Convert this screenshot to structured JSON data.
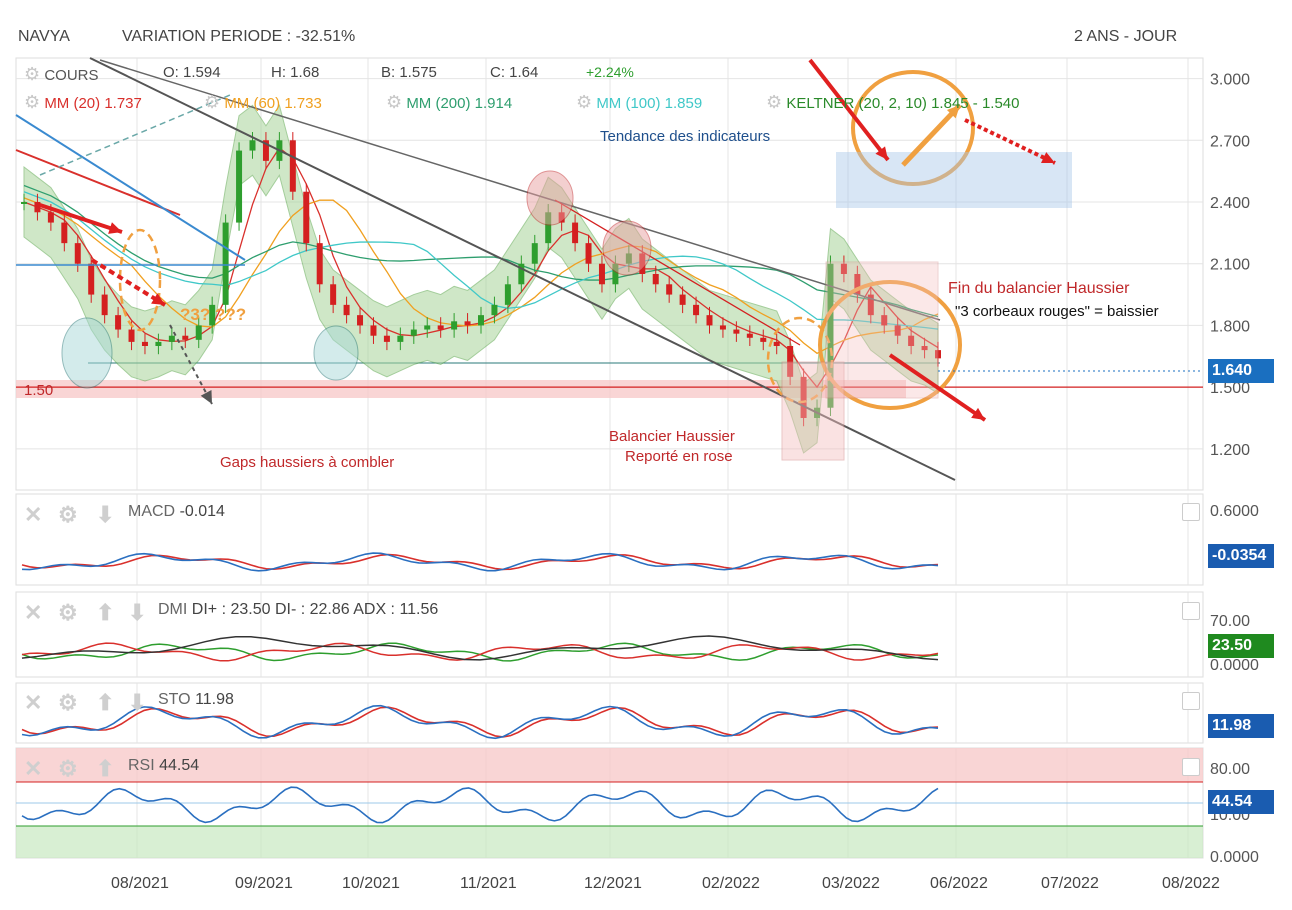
{
  "header": {
    "symbol": "NAVYA",
    "variation": "VARIATION PERIODE : -32.51%",
    "period": "2 ANS - JOUR"
  },
  "quote": {
    "label": "COURS",
    "open": "O: 1.594",
    "high": "H: 1.68",
    "low": "B: 1.575",
    "close": "C: 1.64",
    "change": "+2.24%"
  },
  "indicators": {
    "mm20": "MM (20) 1.737",
    "mm60": "MM (60) 1.733",
    "mm200": "MM (200) 1.914",
    "mm100": "MM (100) 1.859",
    "keltner": "KELTNER (20, 2, 10) 1.845 - 1.540"
  },
  "colors": {
    "up": "#2e9e2e",
    "down": "#d42020",
    "mm20": "#d9302c",
    "mm60": "#f0a020",
    "mm200": "#2e9e6e",
    "mm100": "#40c8c8",
    "keltner": "#6aa84f",
    "accent": "#1a6fc0"
  },
  "annotations": {
    "tendance": "Tendance des indicateurs",
    "gaps": "Gaps haussiers à combler",
    "balancier1": "Balancier Haussier",
    "balancier2": "Reporté en rose",
    "fin": "Fin du balancier Haussier",
    "corbeaux": "\"3 corbeaux rouges\" = baissier",
    "question": "?3? ???",
    "level": "1.50"
  },
  "price_axis": {
    "ticks": [
      "3.000",
      "2.700",
      "2.400",
      "2.100",
      "1.800",
      "1.500",
      "1.200"
    ],
    "last": "1.640"
  },
  "x_axis": {
    "ticks": [
      "08/2021",
      "09/2021",
      "10/2021",
      "11/2021",
      "12/2021",
      "02/2022",
      "03/2022",
      "06/2022",
      "07/2022",
      "08/2022"
    ]
  },
  "panels": {
    "macd": {
      "label": "MACD",
      "value": "-0.014",
      "ticks": [
        "0.6000"
      ],
      "last": "-0.0354"
    },
    "dmi": {
      "label": "DMI",
      "value": "DI+ : 23.50 DI- : 22.86 ADX : 11.56",
      "ticks": [
        "70.00",
        "0.0000"
      ],
      "last": "23.50"
    },
    "sto": {
      "label": "STO",
      "value": "11.98",
      "last": "11.98"
    },
    "rsi": {
      "label": "RSI",
      "value": "44.54",
      "ticks": [
        "80.00",
        "10.00",
        "0.0000"
      ],
      "last": "44.54"
    }
  },
  "chart_data": {
    "type": "candlestick",
    "price_range": [
      1.0,
      3.1
    ],
    "close_series": [
      2.4,
      2.35,
      2.3,
      2.2,
      2.1,
      1.95,
      1.85,
      1.78,
      1.72,
      1.7,
      1.72,
      1.75,
      1.73,
      1.8,
      1.9,
      2.3,
      2.65,
      2.7,
      2.6,
      2.7,
      2.45,
      2.2,
      2.0,
      1.9,
      1.85,
      1.8,
      1.75,
      1.72,
      1.75,
      1.78,
      1.8,
      1.78,
      1.82,
      1.8,
      1.85,
      1.9,
      2.0,
      2.1,
      2.2,
      2.35,
      2.3,
      2.2,
      2.1,
      2.0,
      2.1,
      2.15,
      2.05,
      2.0,
      1.95,
      1.9,
      1.85,
      1.8,
      1.78,
      1.76,
      1.74,
      1.72,
      1.7,
      1.55,
      1.35,
      1.4,
      2.1,
      2.05,
      1.95,
      1.85,
      1.8,
      1.75,
      1.7,
      1.68,
      1.64
    ],
    "level_line": 1.5,
    "x_labels": [
      "08/2021",
      "09/2021",
      "10/2021",
      "11/2021",
      "12/2021",
      "02/2022",
      "03/2022",
      "06/2022",
      "07/2022",
      "08/2022"
    ]
  }
}
